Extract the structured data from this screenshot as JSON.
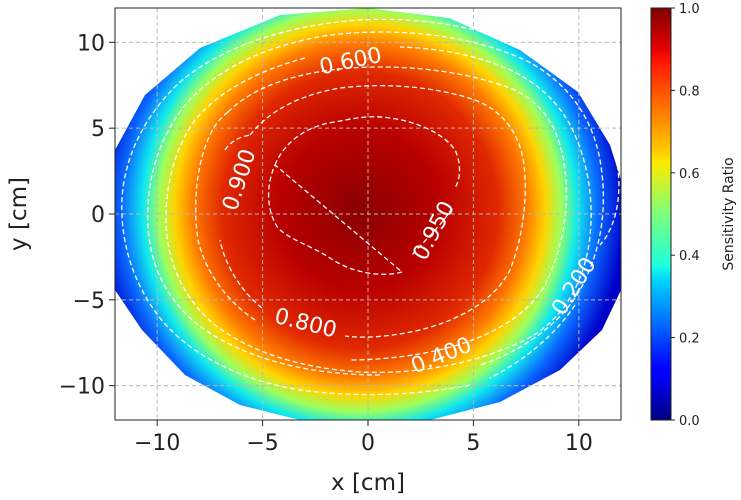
{
  "chart_data": {
    "type": "heatmap",
    "title": "",
    "xlabel": "x [cm]",
    "ylabel": "y [cm]",
    "xlim": [
      -12,
      12
    ],
    "ylim": [
      -12,
      12
    ],
    "x_ticks": [
      -10,
      -5,
      0,
      5,
      10
    ],
    "x_tick_labels": [
      "−10",
      "−5",
      "0",
      "5",
      "10"
    ],
    "y_ticks": [
      -10,
      -5,
      0,
      5,
      10
    ],
    "y_tick_labels": [
      "−10",
      "−5",
      "0",
      "5",
      "10"
    ],
    "grid": true,
    "colormap": "jet",
    "colorbar": {
      "label": "Sensitivity Ratio",
      "range": [
        0.0,
        1.0
      ],
      "ticks": [
        0.0,
        0.2,
        0.4,
        0.6,
        0.8,
        1.0
      ],
      "tick_labels": [
        "0.0",
        "0.2",
        "0.4",
        "0.6",
        "0.8",
        "1.0"
      ]
    },
    "contour_levels": [
      {
        "level": 0.2,
        "label": "0.200"
      },
      {
        "level": 0.4,
        "label": "0.400"
      },
      {
        "level": 0.6,
        "label": "0.600"
      },
      {
        "level": 0.8,
        "label": "0.800"
      },
      {
        "level": 0.9,
        "label": "0.900"
      },
      {
        "level": 0.95,
        "label": "0.950"
      }
    ]
  }
}
